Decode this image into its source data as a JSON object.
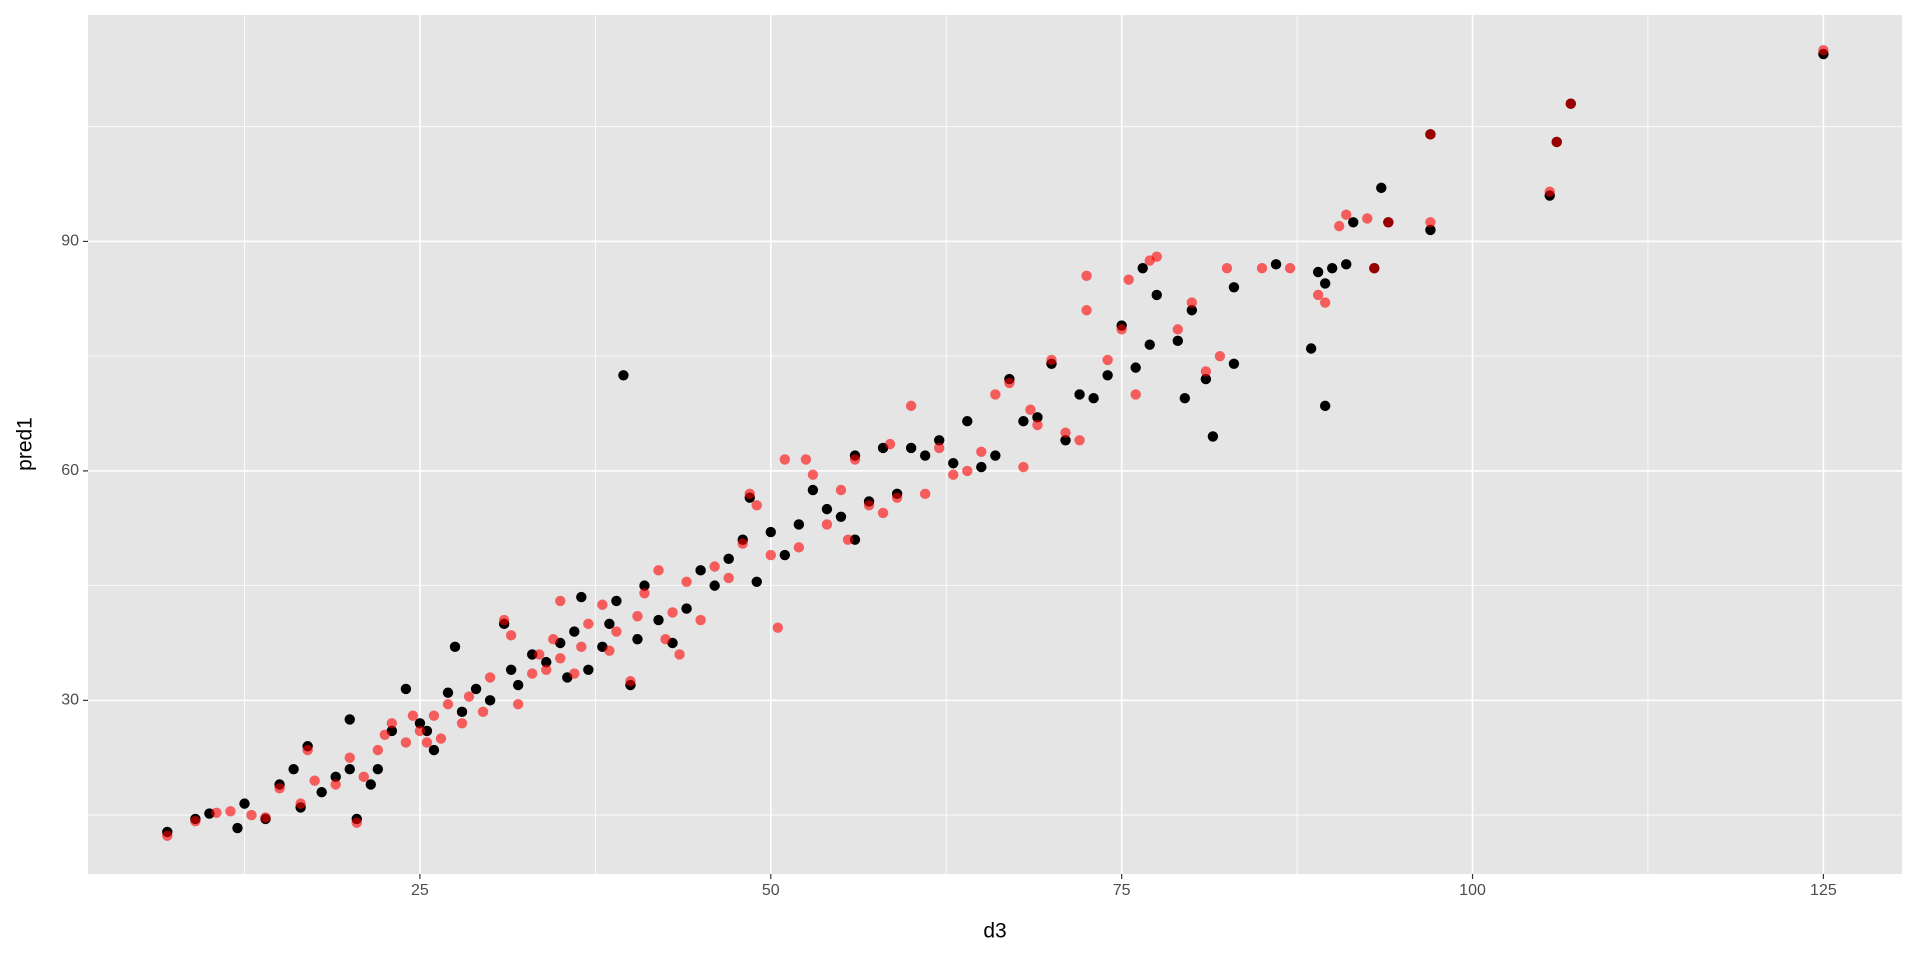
{
  "chart_data": {
    "type": "scatter",
    "x_label": "d3",
    "y_label": "pred1",
    "xlim": [
      1.35,
      130.6
    ],
    "ylim": [
      7.3,
      119.6
    ],
    "xticks": [
      25,
      50,
      75,
      100,
      125
    ],
    "yticks": [
      30,
      60,
      90
    ],
    "x_minor_ticks": [
      12.5,
      37.5,
      62.5,
      87.5,
      112.5
    ],
    "y_minor_ticks": [
      15,
      45,
      75,
      105
    ],
    "grid": true,
    "panel_color": "#e5e5e5",
    "series": [
      {
        "color": "#000000",
        "alpha": 1,
        "x": [
          7,
          9,
          10,
          12,
          12.5,
          14,
          15,
          16,
          16.5,
          17,
          18,
          19,
          20,
          20,
          20.5,
          21.5,
          22,
          23,
          24,
          25,
          25.5,
          26,
          27,
          27.5,
          28,
          29,
          30,
          31,
          31.5,
          32,
          33,
          34,
          35,
          35.5,
          36,
          36.5,
          37,
          38,
          38.5,
          39,
          39.5,
          40,
          40.5,
          41,
          42,
          43,
          44,
          45,
          46,
          47,
          48,
          48.5,
          49,
          50,
          51,
          52,
          53,
          54,
          55,
          56,
          56,
          57,
          58,
          59,
          60,
          61,
          62,
          63,
          64,
          65,
          66,
          67,
          68,
          69,
          70,
          71,
          72,
          73,
          74,
          75,
          76,
          76.5,
          77,
          77.5,
          79,
          79.5,
          80,
          81,
          81.5,
          83,
          83,
          86,
          88.5,
          89,
          89.5,
          89.5,
          90,
          91,
          91.5,
          93,
          93.5,
          94,
          97,
          97,
          105.5,
          106,
          107,
          125
        ],
        "values": [
          12.8,
          14.5,
          15.2,
          13.3,
          16.5,
          14.5,
          19,
          21,
          16,
          24,
          18,
          20,
          27.5,
          21,
          14.5,
          19,
          21,
          26,
          31.5,
          27,
          26,
          23.5,
          31,
          37,
          28.5,
          31.5,
          30,
          40,
          34,
          32,
          36,
          35,
          37.5,
          33,
          39,
          43.5,
          34,
          37,
          40,
          43,
          72.5,
          32,
          38,
          45,
          40.5,
          37.5,
          42,
          47,
          45,
          48.5,
          51,
          56.5,
          45.5,
          52,
          49,
          53,
          57.5,
          55,
          54,
          51,
          62,
          56,
          63,
          57,
          63,
          62,
          64,
          61,
          66.5,
          60.5,
          62,
          72,
          66.5,
          67,
          74,
          64,
          70,
          69.5,
          72.5,
          79,
          73.5,
          86.5,
          76.5,
          83,
          77,
          69.5,
          81,
          72,
          64.5,
          84,
          74,
          87,
          76,
          86,
          84.5,
          68.5,
          86.5,
          87,
          92.5,
          86.5,
          97,
          92.5,
          91.5,
          104,
          96,
          103,
          108,
          114.5
        ]
      },
      {
        "color": "#ff0000",
        "alpha": 0.6,
        "x": [
          7,
          9,
          10.5,
          11.5,
          13,
          14,
          15,
          16.5,
          17,
          17.5,
          19,
          20,
          20.5,
          21,
          22,
          22.5,
          23,
          24,
          24.5,
          25,
          25.5,
          26,
          26.5,
          27,
          28,
          28.5,
          29.5,
          30,
          31,
          31.5,
          32,
          33,
          33.5,
          34,
          34.5,
          35,
          35,
          36,
          36.5,
          37,
          38,
          38.5,
          39,
          40,
          40.5,
          41,
          42,
          42.5,
          43,
          43.5,
          44,
          45,
          46,
          47,
          48,
          48.5,
          49,
          50,
          50.5,
          51,
          52,
          52.5,
          53,
          54,
          55,
          55.5,
          56,
          57,
          58,
          58.5,
          59,
          60,
          61,
          62,
          63,
          64,
          65,
          66,
          67,
          68,
          68.5,
          69,
          70,
          71,
          72,
          72.5,
          72.5,
          74,
          75,
          75.5,
          76,
          77,
          77.5,
          79,
          80,
          81,
          82,
          82.5,
          85,
          87,
          89,
          89.5,
          90.5,
          91,
          92.5,
          93,
          94,
          97,
          97,
          105.5,
          106,
          107,
          125
        ],
        "values": [
          12.3,
          14.2,
          15.3,
          15.5,
          15,
          14.7,
          18.5,
          16.5,
          23.5,
          19.5,
          19,
          22.5,
          14,
          20,
          23.5,
          25.5,
          27,
          24.5,
          28,
          26,
          24.5,
          28,
          25,
          29.5,
          27,
          30.5,
          28.5,
          33,
          40.5,
          38.5,
          29.5,
          33.5,
          36,
          34,
          38,
          43,
          35.5,
          33.5,
          37,
          40,
          42.5,
          36.5,
          39,
          32.5,
          41,
          44,
          47,
          38,
          41.5,
          36,
          45.5,
          40.5,
          47.5,
          46,
          50.5,
          57,
          55.5,
          49,
          39.5,
          61.5,
          50,
          61.5,
          59.5,
          53,
          57.5,
          51,
          61.5,
          55.5,
          54.5,
          63.5,
          56.5,
          68.5,
          57,
          63,
          59.5,
          60,
          62.5,
          70,
          71.5,
          60.5,
          68,
          66,
          74.5,
          65,
          64,
          85.5,
          81,
          74.5,
          78.5,
          85,
          70,
          87.5,
          88,
          78.5,
          82,
          73,
          75,
          86.5,
          86.5,
          86.5,
          83,
          82,
          92,
          93.5,
          93,
          86.5,
          92.5,
          92.5,
          104,
          96.5,
          103,
          108,
          115
        ]
      }
    ]
  }
}
